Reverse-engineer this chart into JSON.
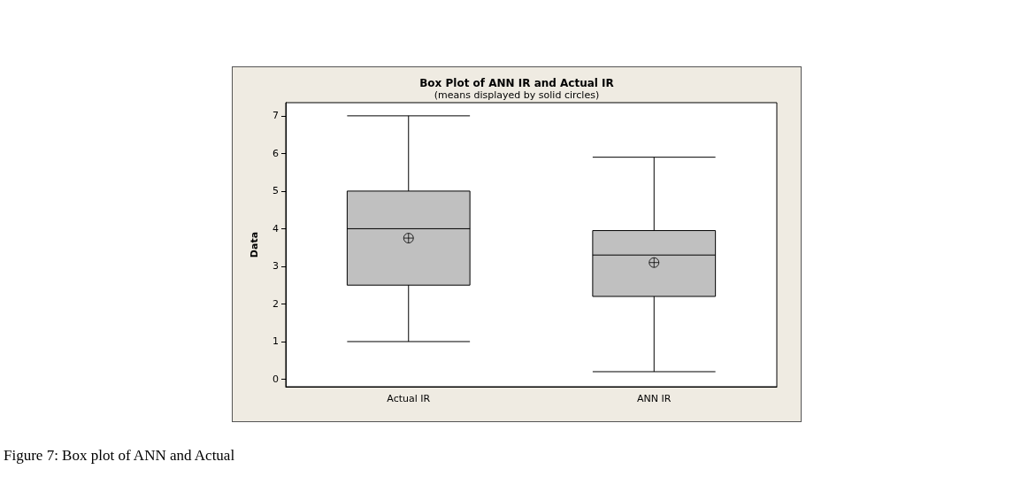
{
  "chart_data": {
    "type": "box",
    "title": "Box Plot of ANN IR and Actual IR",
    "subtitle": "(means displayed by solid circles)",
    "ylabel": "Data",
    "categories": [
      "Actual IR",
      "ANN IR"
    ],
    "series": [
      {
        "color": "#c0c0c0",
        "boxes": [
          {
            "low": 1.0,
            "q1": 2.5,
            "median": 4.0,
            "q3": 5.0,
            "high": 7.0,
            "mean": 3.75
          },
          {
            "low": 0.2,
            "q1": 2.2,
            "median": 3.3,
            "q3": 3.95,
            "high": 5.9,
            "mean": 3.1
          }
        ]
      }
    ],
    "ylim": [
      -0.2,
      7.35
    ],
    "yticks": [
      0,
      1,
      2,
      3,
      4,
      5,
      6,
      7
    ],
    "grid": false,
    "annotations": [
      "Figure 7: Box plot of ANN and Actual"
    ]
  }
}
